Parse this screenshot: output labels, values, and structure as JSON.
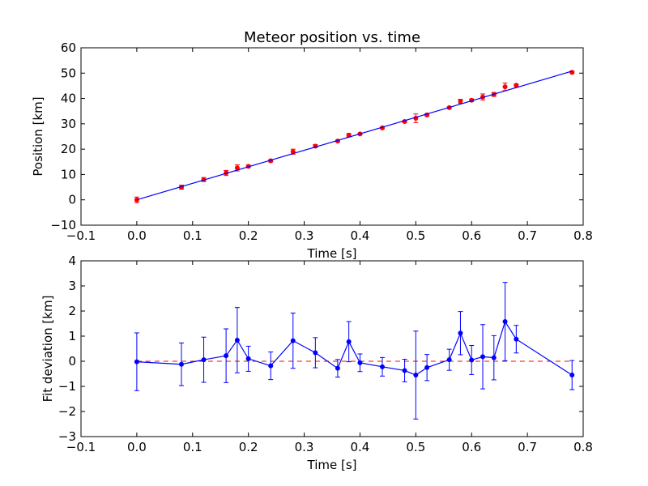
{
  "chart_data": [
    {
      "type": "scatter",
      "title": "Meteor position vs. time",
      "xlabel": "Time [s]",
      "ylabel": "Position [km]",
      "xlim": [
        -0.1,
        0.8
      ],
      "ylim": [
        -10,
        60
      ],
      "xticks": [
        "−0.1",
        "0.0",
        "0.1",
        "0.2",
        "0.3",
        "0.4",
        "0.5",
        "0.6",
        "0.7",
        "0.8"
      ],
      "yticks": [
        "−10",
        "0",
        "10",
        "20",
        "30",
        "40",
        "50",
        "60"
      ],
      "grid": false,
      "series": [
        {
          "kind": "errorbar-points",
          "color": "#ff0000",
          "x": [
            0.0,
            0.08,
            0.12,
            0.16,
            0.18,
            0.2,
            0.24,
            0.28,
            0.32,
            0.36,
            0.38,
            0.4,
            0.44,
            0.48,
            0.5,
            0.52,
            0.56,
            0.58,
            0.6,
            0.62,
            0.64,
            0.66,
            0.68,
            0.78
          ],
          "y": [
            0.0,
            5.0,
            8.0,
            10.6,
            12.6,
            13.2,
            15.4,
            19.0,
            21.2,
            23.2,
            25.5,
            26.0,
            28.4,
            30.9,
            32.2,
            33.5,
            36.4,
            38.9,
            39.3,
            40.6,
            41.6,
            44.6,
            45.2,
            50.3
          ],
          "yerr": [
            1.1,
            0.8,
            0.8,
            1.0,
            1.2,
            0.5,
            0.5,
            1.0,
            0.6,
            0.3,
            0.7,
            0.3,
            0.3,
            0.4,
            1.7,
            0.5,
            0.3,
            0.8,
            0.5,
            1.2,
            0.8,
            1.5,
            0.5,
            0.5
          ]
        },
        {
          "kind": "fit-line",
          "color": "#0000ff",
          "x": [
            0.0,
            0.78
          ],
          "y": [
            0.0,
            50.8
          ]
        }
      ]
    },
    {
      "type": "line",
      "xlabel": "Time [s]",
      "ylabel": "Fit deviation [km]",
      "xlim": [
        -0.1,
        0.8
      ],
      "ylim": [
        -3,
        4
      ],
      "xticks": [
        "−0.1",
        "0.0",
        "0.1",
        "0.2",
        "0.3",
        "0.4",
        "0.5",
        "0.6",
        "0.7",
        "0.8"
      ],
      "yticks": [
        "−3",
        "−2",
        "−1",
        "0",
        "1",
        "2",
        "3",
        "4"
      ],
      "grid": false,
      "zero_line_color": "#ff0000",
      "series": [
        {
          "kind": "errorbar-line",
          "color": "#0000ff",
          "x": [
            0.0,
            0.08,
            0.12,
            0.16,
            0.18,
            0.2,
            0.24,
            0.28,
            0.32,
            0.36,
            0.38,
            0.4,
            0.44,
            0.48,
            0.5,
            0.52,
            0.56,
            0.58,
            0.6,
            0.62,
            0.64,
            0.66,
            0.68,
            0.78
          ],
          "y": [
            -0.02,
            -0.12,
            0.06,
            0.22,
            0.84,
            0.1,
            -0.18,
            0.82,
            0.34,
            -0.28,
            0.78,
            -0.06,
            -0.22,
            -0.37,
            -0.55,
            -0.25,
            0.06,
            1.12,
            0.05,
            0.18,
            0.14,
            1.58,
            0.88,
            -0.55
          ],
          "yerr": [
            1.15,
            0.85,
            0.9,
            1.07,
            1.3,
            0.5,
            0.55,
            1.1,
            0.6,
            0.35,
            0.8,
            0.35,
            0.37,
            0.45,
            1.75,
            0.52,
            0.42,
            0.86,
            0.58,
            1.28,
            0.88,
            1.56,
            0.55,
            0.58
          ]
        }
      ]
    }
  ]
}
